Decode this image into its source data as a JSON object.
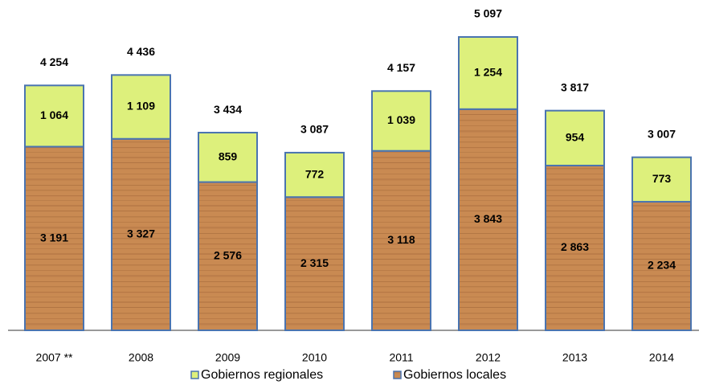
{
  "chart_data": {
    "type": "stacked-bar",
    "categories": [
      "2007 **",
      "2008",
      "2009",
      "2010",
      "2011",
      "2012",
      "2013",
      "2014"
    ],
    "series": [
      {
        "name": "Gobiernos locales",
        "color": "#c98a52",
        "values": [
          3191,
          3327,
          2576,
          2315,
          3118,
          3843,
          2863,
          2234
        ],
        "value_labels": [
          "3 191",
          "3 327",
          "2 576",
          "2 315",
          "3 118",
          "3 843",
          "2 863",
          "2 234"
        ]
      },
      {
        "name": "Gobiernos regionales",
        "color": "#ddf07c",
        "values": [
          1064,
          1109,
          859,
          772,
          1039,
          1254,
          954,
          773
        ],
        "value_labels": [
          "1 064",
          "1 109",
          "859",
          "772",
          "1 039",
          "1 254",
          "954",
          "773"
        ]
      }
    ],
    "totals": {
      "values": [
        4254,
        4436,
        3434,
        3087,
        4157,
        5097,
        3817,
        3007
      ],
      "value_labels": [
        "4 254",
        "4 436",
        "3 434",
        "3 087",
        "4 157",
        "5 097",
        "3 817",
        "3 007"
      ]
    }
  }
}
